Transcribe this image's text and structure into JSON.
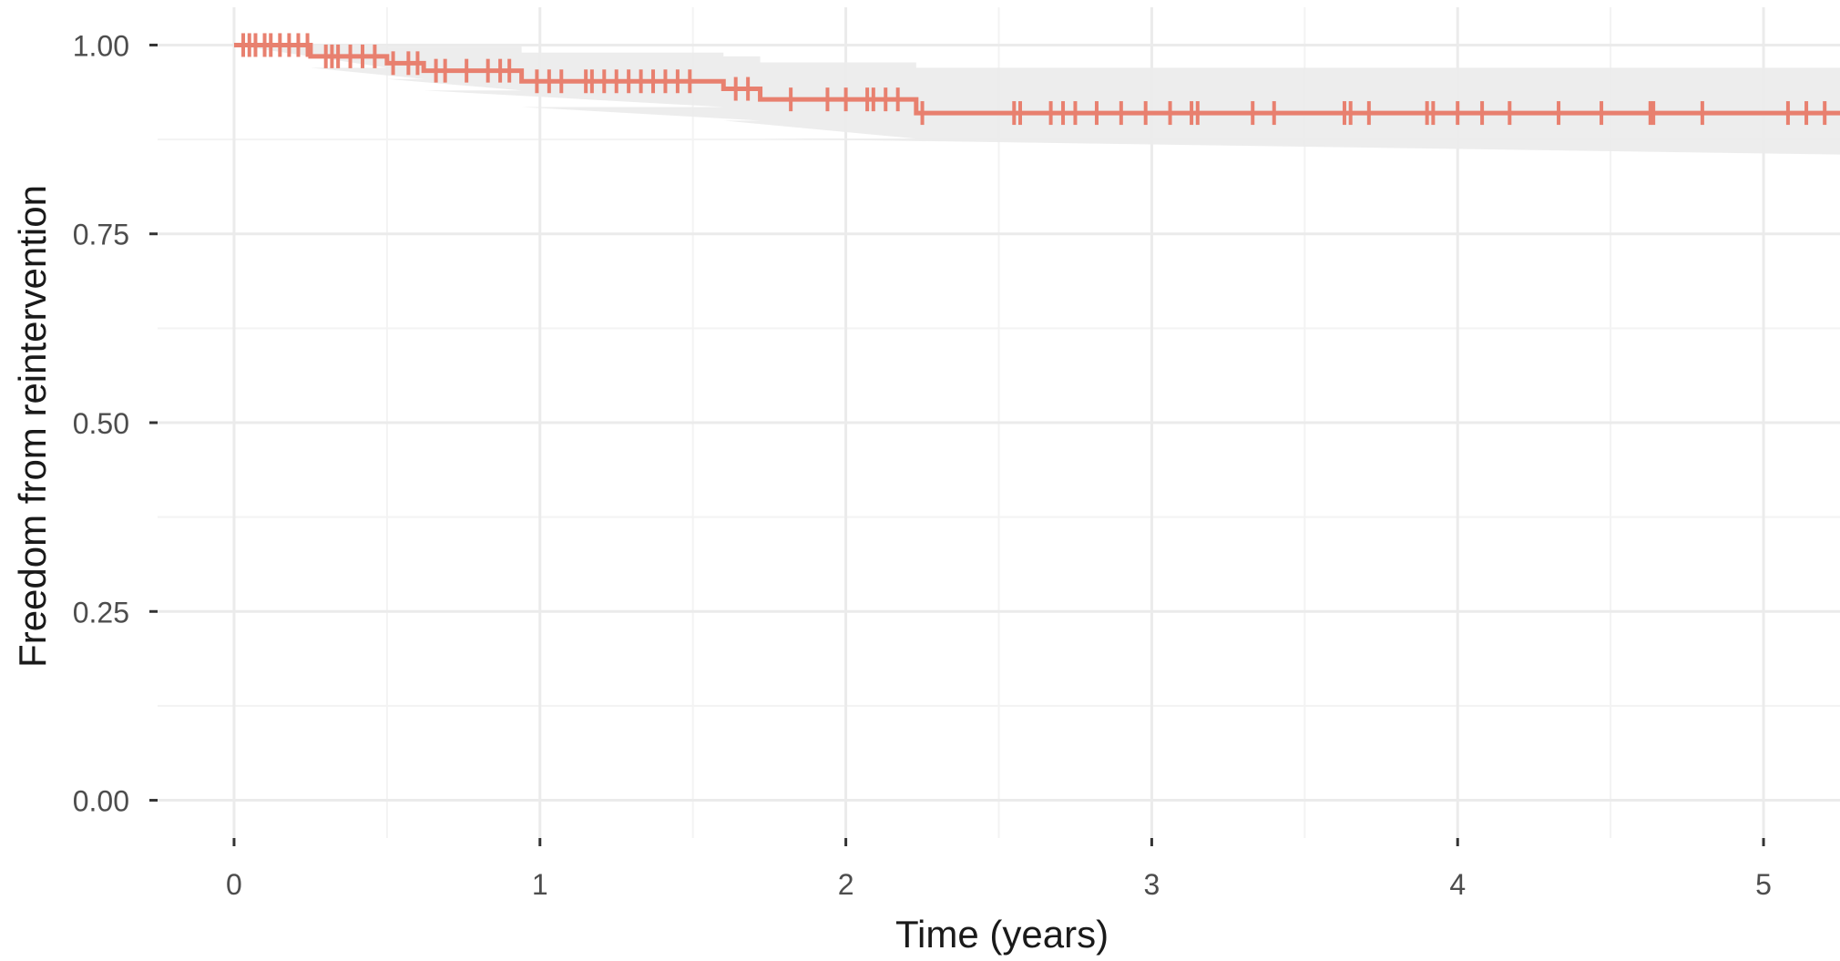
{
  "chart_data": {
    "type": "line",
    "title": "",
    "xlabel": "Time (years)",
    "ylabel": "Freedom from reintervention",
    "xlim": [
      -0.25,
      5.25
    ],
    "ylim": [
      -0.05,
      1.05
    ],
    "x_ticks": [
      0,
      1,
      2,
      3,
      4,
      5
    ],
    "x_tick_labels": [
      "0",
      "1",
      "2",
      "3",
      "4",
      "5"
    ],
    "y_ticks": [
      0,
      0.25,
      0.5,
      0.75,
      1.0
    ],
    "y_tick_labels": [
      "0.00",
      "0.25",
      "0.50",
      "0.75",
      "1.00"
    ],
    "grid": true,
    "legend": "none",
    "colors": {
      "line": "#e8806f",
      "ci_band": "#ebebeb",
      "grid_major": "#ebebeb",
      "grid_minor": "#f3f3f3",
      "axis_tick": "#333333"
    },
    "series": [
      {
        "step": [
          {
            "x": 0.0,
            "y": 1.0
          },
          {
            "x": 0.25,
            "y": 0.985
          },
          {
            "x": 0.5,
            "y": 0.976
          },
          {
            "x": 0.62,
            "y": 0.966
          },
          {
            "x": 0.94,
            "y": 0.952
          },
          {
            "x": 1.6,
            "y": 0.942
          },
          {
            "x": 1.72,
            "y": 0.928
          },
          {
            "x": 2.23,
            "y": 0.91
          },
          {
            "x": 5.25,
            "y": 0.91
          }
        ],
        "ci_upper": [
          {
            "x": 0.0,
            "y": 1.0
          },
          {
            "x": 0.25,
            "y": 1.0
          },
          {
            "x": 0.5,
            "y": 0.998
          },
          {
            "x": 0.94,
            "y": 0.99
          },
          {
            "x": 1.6,
            "y": 0.985
          },
          {
            "x": 1.72,
            "y": 0.977
          },
          {
            "x": 2.23,
            "y": 0.97
          },
          {
            "x": 5.25,
            "y": 0.97
          }
        ],
        "ci_lower": [
          {
            "x": 0.0,
            "y": 1.0
          },
          {
            "x": 0.25,
            "y": 0.97
          },
          {
            "x": 0.5,
            "y": 0.955
          },
          {
            "x": 0.62,
            "y": 0.94
          },
          {
            "x": 0.94,
            "y": 0.918
          },
          {
            "x": 1.6,
            "y": 0.9
          },
          {
            "x": 1.72,
            "y": 0.876
          },
          {
            "x": 2.23,
            "y": 0.855
          },
          {
            "x": 5.25,
            "y": 0.855
          }
        ],
        "censor_times": [
          0.03,
          0.05,
          0.07,
          0.1,
          0.12,
          0.15,
          0.18,
          0.21,
          0.24,
          0.3,
          0.32,
          0.34,
          0.38,
          0.42,
          0.46,
          0.52,
          0.57,
          0.6,
          0.66,
          0.69,
          0.76,
          0.83,
          0.87,
          0.9,
          0.99,
          1.03,
          1.07,
          1.15,
          1.17,
          1.21,
          1.25,
          1.29,
          1.33,
          1.37,
          1.41,
          1.45,
          1.49,
          1.64,
          1.68,
          1.82,
          1.94,
          2.0,
          2.07,
          2.09,
          2.13,
          2.17,
          2.25,
          2.55,
          2.57,
          2.67,
          2.71,
          2.75,
          2.82,
          2.9,
          2.98,
          3.06,
          3.13,
          3.15,
          3.33,
          3.4,
          3.63,
          3.65,
          3.71,
          3.9,
          3.92,
          4.0,
          4.08,
          4.17,
          4.33,
          4.47,
          4.63,
          4.64,
          4.8,
          5.08,
          5.14,
          5.2
        ]
      }
    ]
  }
}
